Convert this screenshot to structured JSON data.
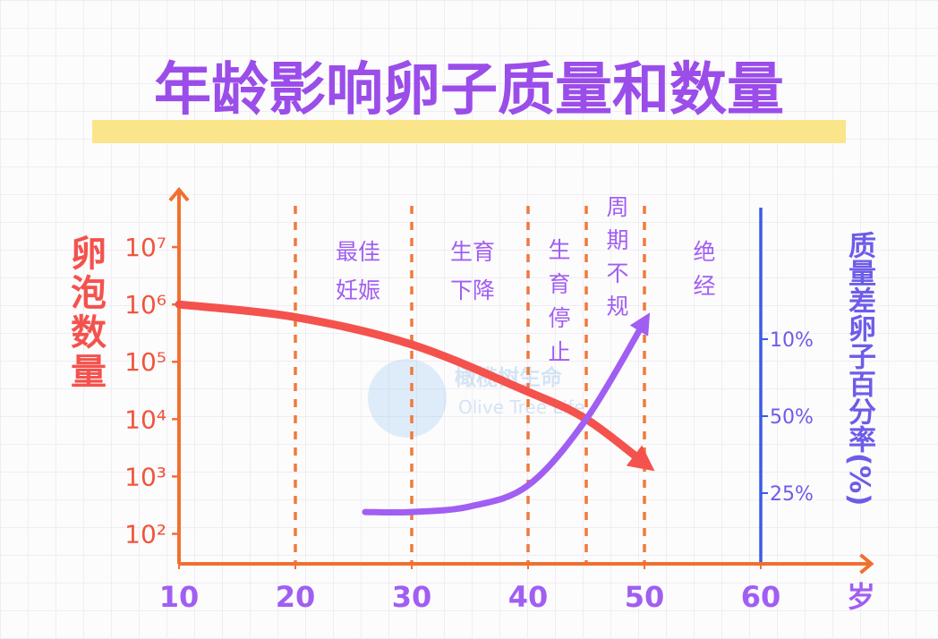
{
  "chart_data": {
    "type": "line",
    "title": "年龄影响卵子质量和数量",
    "ylabel": "卵泡数量",
    "y2label": "质量差卵子百分率(%)",
    "xlabel": "岁",
    "xlim": [
      10,
      69.5
    ],
    "xticks": [
      10,
      20,
      30,
      40,
      50,
      60
    ],
    "ylim": [
      30,
      100000000
    ],
    "yscale": "log",
    "yticks": [
      {
        "value": 100,
        "label": "10²"
      },
      {
        "value": 1000,
        "label": "10³"
      },
      {
        "value": 10000,
        "label": "10⁴"
      },
      {
        "value": 100000,
        "label": "10⁵"
      },
      {
        "value": 1000000,
        "label": "10⁶"
      },
      {
        "value": 10000000,
        "label": "10⁷"
      }
    ],
    "y2categories": [
      "10%",
      "50%",
      "25%"
    ],
    "dividers": [
      20,
      30,
      40,
      45,
      50
    ],
    "y2_axis_at": 60,
    "zones": [
      {
        "lines": [
          "最佳",
          "妊娠"
        ]
      },
      {
        "lines": [
          "生育",
          "下降"
        ]
      },
      {
        "lines": [
          "生",
          "育",
          "停",
          "止"
        ]
      },
      {
        "lines": [
          "周",
          "期",
          "不",
          "规"
        ]
      },
      {
        "lines": [
          "绝",
          "经"
        ]
      }
    ],
    "series": [
      {
        "color": "#f4524d",
        "x": [
          10,
          20,
          30,
          40,
          45,
          50
        ],
        "values": [
          1000000,
          600000,
          200000,
          30000,
          10000,
          1700
        ]
      },
      {
        "color": "#a15ef2",
        "x": [
          26,
          30,
          35,
          40,
          45,
          50
        ],
        "values": [
          240,
          240,
          300,
          700,
          10000,
          500000
        ]
      }
    ],
    "watermark": [
      "橄榄树生命",
      "Olive Tree Life"
    ]
  }
}
